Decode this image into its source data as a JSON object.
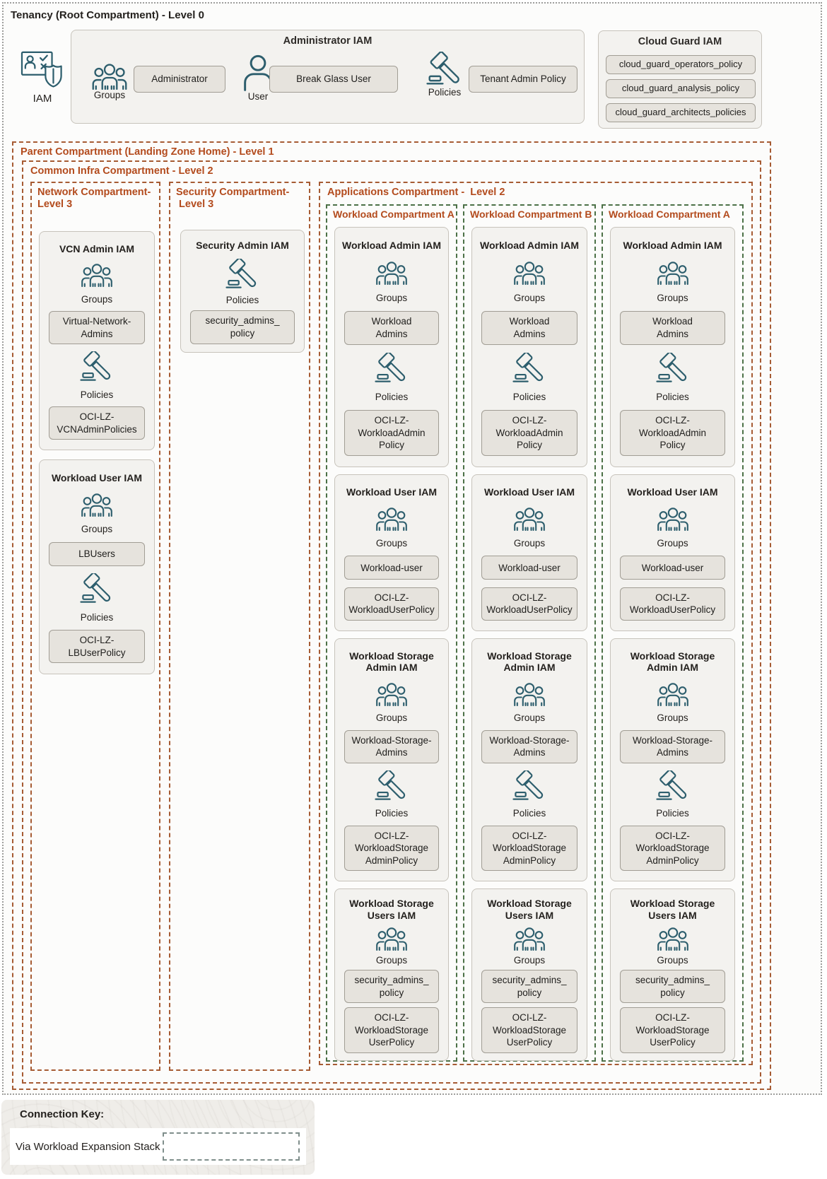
{
  "tenancy": {
    "title": "Tenancy (Root Compartment) - Level 0"
  },
  "iam_badge": {
    "label": "IAM"
  },
  "admin_iam": {
    "title": "Administrator IAM",
    "groups_label": "Groups",
    "user_label": "User",
    "policies_label": "Policies",
    "administrator_button": "Administrator",
    "break_glass_button": "Break Glass User",
    "tenant_admin_policy_button": "Tenant Admin Policy"
  },
  "cloud_guard_iam": {
    "title": "Cloud Guard IAM",
    "policies": [
      "cloud_guard_operators_policy",
      "cloud_guard_analysis_policy",
      "cloud_guard_architects_policies"
    ]
  },
  "parent_compartment": {
    "title": "Parent Compartment (Landing Zone Home) - Level 1"
  },
  "common_infra_compartment": {
    "title": "Common Infra Compartment - Level 2"
  },
  "network_compartment": {
    "title": "Network Compartment-\nLevel 3",
    "vcn_admin": {
      "title": "VCN Admin IAM",
      "groups_label": "Groups",
      "group_button": "Virtual-Network-\nAdmins",
      "policies_label": "Policies",
      "policy_button": "OCI-LZ-\nVCNAdminPolicies"
    },
    "workload_user": {
      "title": "Workload User IAM",
      "groups_label": "Groups",
      "group_button": "LBUsers",
      "policies_label": "Policies",
      "policy_button": "OCI-LZ-\nLBUserPolicy"
    }
  },
  "security_compartment": {
    "title": "Security Compartment-\n Level 3",
    "security_admin": {
      "title": "Security Admin IAM",
      "policies_label": "Policies",
      "policy_button": "security_admins_\npolicy"
    }
  },
  "applications_compartment": {
    "title": "Applications Compartment -  Level 2",
    "workloads": [
      {
        "title": "Workload Compartment A",
        "sections": [
          {
            "title": "Workload Admin IAM",
            "groups_label": "Groups",
            "group_button": "Workload\nAdmins",
            "policies_label": "Policies",
            "policy_button": "OCI-LZ-\nWorkloadAdmin\nPolicy"
          },
          {
            "title": "Workload User IAM",
            "groups_label": "Groups",
            "group_button": "Workload-user",
            "policy_button": "OCI-LZ-\nWorkloadUserPolicy"
          },
          {
            "title": "Workload Storage\nAdmin IAM",
            "groups_label": "Groups",
            "group_button": "Workload-Storage-\nAdmins",
            "policies_label": "Policies",
            "policy_button": "OCI-LZ-\nWorkloadStorage\nAdminPolicy"
          },
          {
            "title": "Workload Storage\nUsers IAM",
            "groups_label": "Groups",
            "group_button": "security_admins_\npolicy",
            "policy_button": "OCI-LZ-\nWorkloadStorage\nUserPolicy"
          }
        ]
      },
      {
        "title": "Workload Compartment B",
        "sections": [
          {
            "title": "Workload Admin IAM",
            "groups_label": "Groups",
            "group_button": "Workload\nAdmins",
            "policies_label": "Policies",
            "policy_button": "OCI-LZ-\nWorkloadAdmin\nPolicy"
          },
          {
            "title": "Workload User IAM",
            "groups_label": "Groups",
            "group_button": "Workload-user",
            "policy_button": "OCI-LZ-\nWorkloadUserPolicy"
          },
          {
            "title": "Workload Storage\nAdmin IAM",
            "groups_label": "Groups",
            "group_button": "Workload-Storage-\nAdmins",
            "policies_label": "Policies",
            "policy_button": "OCI-LZ-\nWorkloadStorage\nAdminPolicy"
          },
          {
            "title": "Workload Storage\nUsers IAM",
            "groups_label": "Groups",
            "group_button": "security_admins_\npolicy",
            "policy_button": "OCI-LZ-\nWorkloadStorage\nUserPolicy"
          }
        ]
      },
      {
        "title": "Workload Compartment A",
        "sections": [
          {
            "title": "Workload Admin IAM",
            "groups_label": "Groups",
            "group_button": "Workload\nAdmins",
            "policies_label": "Policies",
            "policy_button": "OCI-LZ-\nWorkloadAdmin\nPolicy"
          },
          {
            "title": "Workload User IAM",
            "groups_label": "Groups",
            "group_button": "Workload-user",
            "policy_button": "OCI-LZ-\nWorkloadUserPolicy"
          },
          {
            "title": "Workload Storage\nAdmin IAM",
            "groups_label": "Groups",
            "group_button": "Workload-Storage-\nAdmins",
            "policies_label": "Policies",
            "policy_button": "OCI-LZ-\nWorkloadStorage\nAdminPolicy"
          },
          {
            "title": "Workload Storage\nUsers IAM",
            "groups_label": "Groups",
            "group_button": "security_admins_\npolicy",
            "policy_button": "OCI-LZ-\nWorkloadStorage\nUserPolicy"
          }
        ]
      }
    ]
  },
  "connection_key": {
    "title": "Connection Key:",
    "items": [
      {
        "label": "Via Workload Expansion Stack"
      }
    ]
  },
  "colors": {
    "compartment_orange": "#b34b1d",
    "workload_green": "#4c7147",
    "icon_teal": "#2d5e6d"
  }
}
